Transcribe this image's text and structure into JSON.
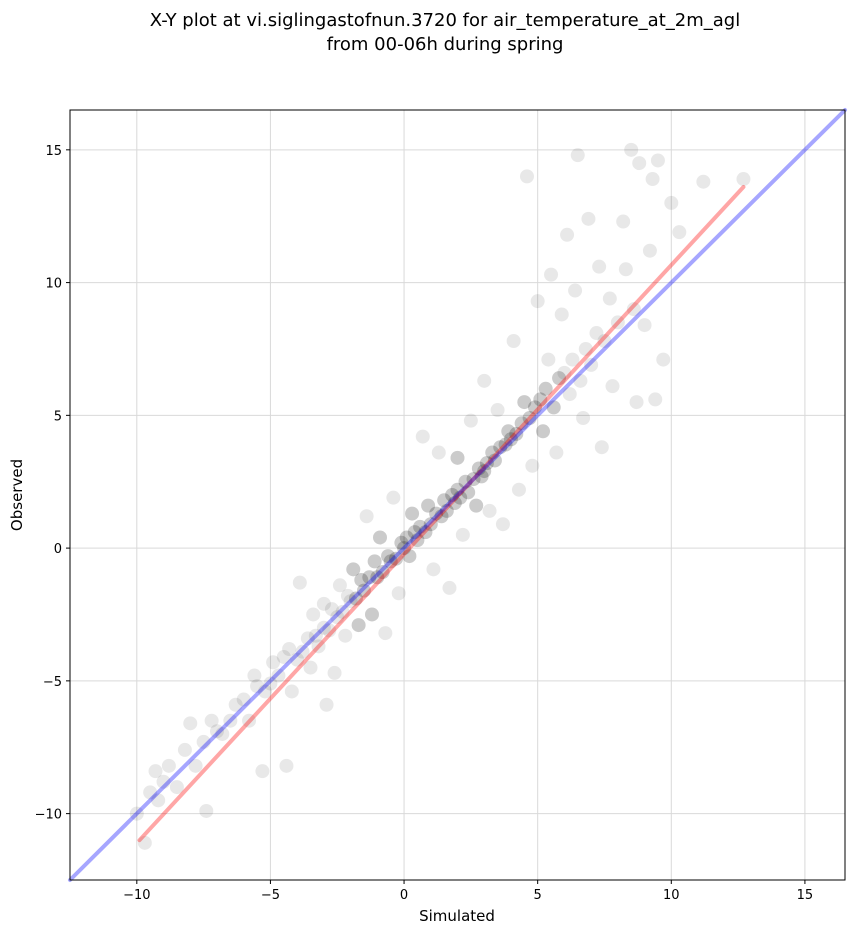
{
  "chart_data": {
    "type": "scatter",
    "title": "X-Y plot at vi.siglingastofnun.3720 for air_temperature_at_2m_agl",
    "subtitle": "from 00-06h during spring",
    "xlabel": "Simulated",
    "ylabel": "Observed",
    "xlim": [
      -12.5,
      16.5
    ],
    "ylim": [
      -12.5,
      16.5
    ],
    "xticks": [
      -10,
      -5,
      0,
      5,
      10,
      15
    ],
    "yticks": [
      -10,
      -5,
      0,
      5,
      10,
      15
    ],
    "xtick_labels": [
      "−10",
      "−5",
      "0",
      "5",
      "10",
      "15"
    ],
    "ytick_labels": [
      "−10",
      "−5",
      "0",
      "5",
      "10",
      "15"
    ],
    "grid": true,
    "legend": false,
    "point_color": "#000000",
    "point_alpha": 0.08,
    "series": [
      {
        "values_description": "scatter points (representative sample)",
        "points": [
          [
            -10.0,
            -10.0
          ],
          [
            -9.7,
            -11.1
          ],
          [
            -9.5,
            -9.2
          ],
          [
            -9.3,
            -8.4
          ],
          [
            -9.2,
            -9.5
          ],
          [
            -9.0,
            -8.8
          ],
          [
            -8.8,
            -8.2
          ],
          [
            -8.5,
            -9.0
          ],
          [
            -8.2,
            -7.6
          ],
          [
            -8.0,
            -6.6
          ],
          [
            -7.8,
            -8.2
          ],
          [
            -7.5,
            -7.3
          ],
          [
            -7.4,
            -9.9
          ],
          [
            -7.2,
            -6.5
          ],
          [
            -7.0,
            -6.9
          ],
          [
            -6.8,
            -7.0
          ],
          [
            -6.5,
            -6.5
          ],
          [
            -6.3,
            -5.9
          ],
          [
            -6.0,
            -5.7
          ],
          [
            -5.8,
            -6.5
          ],
          [
            -5.6,
            -4.8
          ],
          [
            -5.5,
            -5.2
          ],
          [
            -5.3,
            -8.4
          ],
          [
            -5.2,
            -5.4
          ],
          [
            -5.0,
            -5.1
          ],
          [
            -4.9,
            -4.3
          ],
          [
            -4.7,
            -4.8
          ],
          [
            -4.5,
            -4.1
          ],
          [
            -4.4,
            -8.2
          ],
          [
            -4.3,
            -3.8
          ],
          [
            -4.2,
            -5.4
          ],
          [
            -4.0,
            -4.2
          ],
          [
            -3.9,
            -1.3
          ],
          [
            -3.8,
            -3.9
          ],
          [
            -3.6,
            -3.4
          ],
          [
            -3.5,
            -4.5
          ],
          [
            -3.4,
            -2.5
          ],
          [
            -3.3,
            -3.3
          ],
          [
            -3.2,
            -3.7
          ],
          [
            -3.0,
            -3.0
          ],
          [
            -3.0,
            -2.1
          ],
          [
            -2.9,
            -5.9
          ],
          [
            -2.8,
            -3.1
          ],
          [
            -2.7,
            -2.3
          ],
          [
            -2.6,
            -4.7
          ],
          [
            -2.5,
            -2.6
          ],
          [
            -2.4,
            -1.4
          ],
          [
            -2.3,
            -2.4
          ],
          [
            -2.2,
            -3.3
          ],
          [
            -2.1,
            -1.8
          ],
          [
            -2.0,
            -2.0
          ],
          [
            -1.9,
            -0.8
          ],
          [
            -1.8,
            -1.9
          ],
          [
            -1.7,
            -2.9
          ],
          [
            -1.6,
            -1.2
          ],
          [
            -1.5,
            -1.6
          ],
          [
            -1.4,
            1.2
          ],
          [
            -1.3,
            -1.1
          ],
          [
            -1.2,
            -2.5
          ],
          [
            -1.1,
            -0.5
          ],
          [
            -1.0,
            -1.1
          ],
          [
            -0.9,
            0.4
          ],
          [
            -0.8,
            -0.9
          ],
          [
            -0.7,
            -3.2
          ],
          [
            -0.6,
            -0.3
          ],
          [
            -0.5,
            -0.5
          ],
          [
            -0.4,
            1.9
          ],
          [
            -0.3,
            -0.4
          ],
          [
            -0.2,
            -1.7
          ],
          [
            -0.1,
            0.2
          ],
          [
            0.0,
            0.0
          ],
          [
            0.1,
            0.4
          ],
          [
            0.2,
            -0.3
          ],
          [
            0.3,
            1.3
          ],
          [
            0.4,
            0.6
          ],
          [
            0.5,
            0.3
          ],
          [
            0.6,
            0.8
          ],
          [
            0.7,
            4.2
          ],
          [
            0.8,
            0.6
          ],
          [
            0.9,
            1.6
          ],
          [
            1.0,
            0.9
          ],
          [
            1.1,
            -0.8
          ],
          [
            1.2,
            1.3
          ],
          [
            1.3,
            3.6
          ],
          [
            1.4,
            1.2
          ],
          [
            1.5,
            1.8
          ],
          [
            1.6,
            1.4
          ],
          [
            1.7,
            -1.5
          ],
          [
            1.8,
            2.0
          ],
          [
            1.9,
            1.7
          ],
          [
            2.0,
            2.2
          ],
          [
            2.0,
            3.4
          ],
          [
            2.1,
            1.9
          ],
          [
            2.2,
            0.5
          ],
          [
            2.3,
            2.5
          ],
          [
            2.4,
            2.1
          ],
          [
            2.5,
            4.8
          ],
          [
            2.6,
            2.6
          ],
          [
            2.7,
            1.6
          ],
          [
            2.8,
            3.0
          ],
          [
            2.9,
            2.7
          ],
          [
            3.0,
            2.9
          ],
          [
            3.0,
            6.3
          ],
          [
            3.1,
            3.2
          ],
          [
            3.2,
            1.4
          ],
          [
            3.3,
            3.6
          ],
          [
            3.4,
            3.3
          ],
          [
            3.5,
            5.2
          ],
          [
            3.6,
            3.8
          ],
          [
            3.7,
            0.9
          ],
          [
            3.8,
            3.9
          ],
          [
            3.9,
            4.4
          ],
          [
            4.0,
            4.1
          ],
          [
            4.1,
            7.8
          ],
          [
            4.2,
            4.3
          ],
          [
            4.3,
            2.2
          ],
          [
            4.4,
            4.7
          ],
          [
            4.5,
            5.5
          ],
          [
            4.6,
            14.0
          ],
          [
            4.7,
            4.9
          ],
          [
            4.8,
            3.1
          ],
          [
            4.9,
            5.3
          ],
          [
            5.0,
            9.3
          ],
          [
            5.1,
            5.6
          ],
          [
            5.2,
            4.4
          ],
          [
            5.3,
            6.0
          ],
          [
            5.4,
            7.1
          ],
          [
            5.5,
            10.3
          ],
          [
            5.6,
            5.3
          ],
          [
            5.7,
            3.6
          ],
          [
            5.8,
            6.4
          ],
          [
            5.9,
            8.8
          ],
          [
            6.0,
            6.6
          ],
          [
            6.1,
            11.8
          ],
          [
            6.2,
            5.8
          ],
          [
            6.3,
            7.1
          ],
          [
            6.4,
            9.7
          ],
          [
            6.5,
            14.8
          ],
          [
            6.6,
            6.3
          ],
          [
            6.7,
            4.9
          ],
          [
            6.8,
            7.5
          ],
          [
            6.9,
            12.4
          ],
          [
            7.0,
            6.9
          ],
          [
            7.2,
            8.1
          ],
          [
            7.3,
            10.6
          ],
          [
            7.4,
            3.8
          ],
          [
            7.5,
            7.8
          ],
          [
            7.7,
            9.4
          ],
          [
            7.8,
            6.1
          ],
          [
            8.0,
            8.5
          ],
          [
            8.2,
            12.3
          ],
          [
            8.3,
            10.5
          ],
          [
            8.5,
            15.0
          ],
          [
            8.6,
            9.0
          ],
          [
            8.7,
            5.5
          ],
          [
            8.8,
            14.5
          ],
          [
            9.0,
            8.4
          ],
          [
            9.2,
            11.2
          ],
          [
            9.3,
            13.9
          ],
          [
            9.4,
            5.6
          ],
          [
            9.5,
            14.6
          ],
          [
            9.7,
            7.1
          ],
          [
            10.0,
            13.0
          ],
          [
            10.3,
            11.9
          ],
          [
            11.2,
            13.8
          ],
          [
            12.7,
            13.9
          ]
        ]
      }
    ],
    "lines": [
      {
        "name": "",
        "color": "#ff0000",
        "alpha": 0.35,
        "x": [
          -9.9,
          12.7
        ],
        "y": [
          -11.0,
          13.6
        ]
      },
      {
        "name": "",
        "color": "#0000ff",
        "alpha": 0.35,
        "x": [
          -12.5,
          16.5
        ],
        "y": [
          -12.5,
          16.5
        ]
      }
    ]
  }
}
